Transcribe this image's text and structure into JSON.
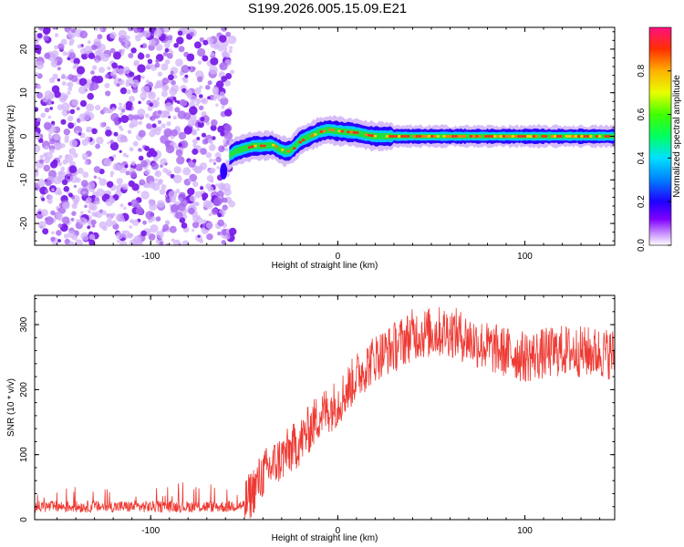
{
  "title": "S199.2026.005.15.09.E21",
  "spectrogram": {
    "type": "heatmap",
    "xlabel": "Height of straight line (km)",
    "ylabel": "Frequency (Hz)",
    "xlim": [
      -162,
      148
    ],
    "ylim": [
      -25,
      25
    ],
    "xticks": [
      -100,
      0,
      100
    ],
    "yticks": [
      -20,
      -10,
      0,
      10,
      20
    ],
    "noise_region_km": [
      -162,
      -58
    ],
    "trace": {
      "x": [
        -58,
        -55,
        -50,
        -45,
        -40,
        -35,
        -31,
        -28,
        -25,
        -20,
        -15,
        -10,
        -5,
        0,
        5,
        10,
        15,
        20,
        25,
        30,
        40,
        60,
        90,
        120,
        148
      ],
      "freq": [
        -4.5,
        -3.5,
        -2.8,
        -2.2,
        -2.2,
        -2.0,
        -3.0,
        -3.5,
        -3.2,
        -1.0,
        0.0,
        1.0,
        1.5,
        1.2,
        1.0,
        0.8,
        0.3,
        0.0,
        0.0,
        0.0,
        0.0,
        0.0,
        0.0,
        0.0,
        0.0
      ]
    }
  },
  "colorbar": {
    "label": "Normalized spectral amplitude",
    "range": [
      0,
      1
    ],
    "ticks": [
      "0.0",
      "0.2",
      "0.4",
      "0.6",
      "0.8"
    ]
  },
  "snr": {
    "type": "line",
    "color": "#ee3a33",
    "xlabel": "Height of straight line (km)",
    "ylabel": "SNR (10 * v/v)",
    "xlim": [
      -162,
      148
    ],
    "ylim": [
      0,
      345
    ],
    "xticks": [
      -100,
      0,
      100
    ],
    "yticks": [
      0,
      100,
      200,
      300
    ],
    "trend": {
      "x": [
        -162,
        -120,
        -60,
        -50,
        -40,
        -30,
        -20,
        -10,
        0,
        10,
        20,
        30,
        40,
        60,
        80,
        100,
        120,
        148
      ],
      "y": [
        20,
        20,
        20,
        22,
        70,
        95,
        120,
        160,
        180,
        220,
        250,
        265,
        285,
        290,
        265,
        250,
        260,
        255
      ]
    }
  }
}
